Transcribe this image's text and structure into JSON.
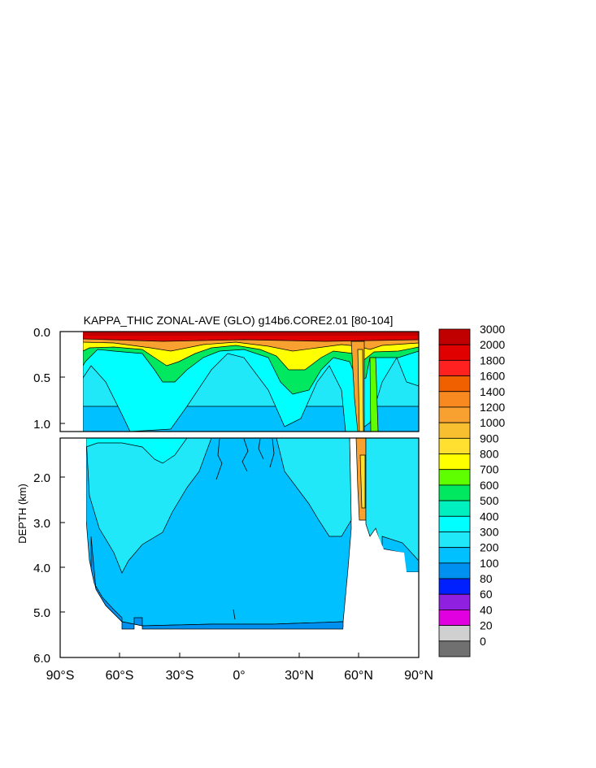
{
  "chart_data": {
    "type": "heatmap",
    "title": "KAPPA_THIC ZONAL-AVE (GLO) g14b6.CORE2.01 [80-104]",
    "ylabel": "DEPTH (km)",
    "xlabel": "",
    "x_ticks": [
      "90°S",
      "60°S",
      "30°S",
      "0°",
      "30°N",
      "60°N",
      "90°N"
    ],
    "x_tick_values": [
      -90,
      -60,
      -30,
      0,
      30,
      60,
      90
    ],
    "xlim": [
      -90,
      90
    ],
    "ylim_upper_panel": [
      0.0,
      1.15
    ],
    "ylim_lower_panel": [
      1.15,
      6.0
    ],
    "y_ticks_upper": [
      "0.0",
      "0.5",
      "1.0"
    ],
    "y_tick_values_upper": [
      0.0,
      0.5,
      1.0
    ],
    "y_ticks_lower": [
      "2.0",
      "3.0",
      "4.0",
      "5.0",
      "6.0"
    ],
    "y_tick_values_lower": [
      2.0,
      3.0,
      4.0,
      5.0,
      6.0
    ],
    "colorbar": {
      "labels": [
        "3000",
        "2000",
        "1800",
        "1600",
        "1400",
        "1200",
        "1000",
        "900",
        "800",
        "700",
        "600",
        "500",
        "400",
        "300",
        "200",
        "100",
        "80",
        "60",
        "40",
        "20",
        "0"
      ],
      "levels": [
        3000,
        2000,
        1800,
        1600,
        1400,
        1200,
        1000,
        900,
        800,
        700,
        600,
        500,
        400,
        300,
        200,
        100,
        80,
        60,
        40,
        20,
        0
      ],
      "colors_top_to_bottom": [
        "#c00000",
        "#e00000",
        "#ff2020",
        "#f06000",
        "#f88820",
        "#f8a030",
        "#f8c030",
        "#ffe030",
        "#ffff00",
        "#60ff00",
        "#00e860",
        "#00f0c0",
        "#00ffff",
        "#20e8f8",
        "#00c0ff",
        "#0090f0",
        "#0020ff",
        "#9020e0",
        "#e000e0",
        "#d0d0d0",
        "#707070"
      ]
    },
    "field_summary": {
      "surface_layer_value": "2000-3000",
      "thermocline_peaks_latitudes": [
        -45,
        40,
        60
      ],
      "deep_ocean_values": [
        "200-300",
        "300-400"
      ],
      "land_regions": [
        "90°S-78°S (Antarctica)",
        "seafloor below ~5.3 km",
        "ridge near 65°N-75°N below 3.7 km"
      ]
    }
  }
}
